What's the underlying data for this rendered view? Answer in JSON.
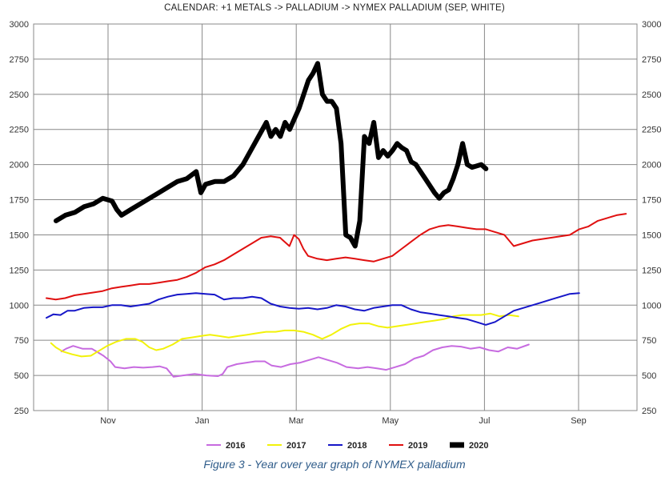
{
  "chart_data": {
    "type": "line",
    "title": "CALENDAR: +1 METALS -> PALLADIUM -> NYMEX PALLADIUM (SEP, WHITE)",
    "xlabel": "",
    "ylabel": "",
    "ylim": [
      250,
      3000
    ],
    "y_ticks": [
      "250",
      "500",
      "750",
      "1000",
      "1250",
      "1500",
      "1750",
      "2000",
      "2250",
      "2500",
      "2750",
      "3000"
    ],
    "x_ticks": [
      "Nov",
      "Jan",
      "Mar",
      "May",
      "Jul",
      "Sep"
    ],
    "grid": true,
    "legend_position": "bottom",
    "series": [
      {
        "name": "2016",
        "color": "#c76be0",
        "width": 2,
        "points": [
          [
            0.03,
            670
          ],
          [
            0.05,
            690
          ],
          [
            0.08,
            710
          ],
          [
            0.12,
            690
          ],
          [
            0.16,
            690
          ],
          [
            0.19,
            660
          ],
          [
            0.21,
            640
          ],
          [
            0.24,
            600
          ],
          [
            0.26,
            560
          ],
          [
            0.3,
            550
          ],
          [
            0.34,
            560
          ],
          [
            0.38,
            555
          ],
          [
            0.42,
            560
          ],
          [
            0.45,
            565
          ],
          [
            0.48,
            550
          ],
          [
            0.51,
            490
          ],
          [
            0.55,
            500
          ],
          [
            0.6,
            510
          ],
          [
            0.65,
            500
          ],
          [
            0.7,
            495
          ],
          [
            0.72,
            510
          ],
          [
            0.74,
            560
          ],
          [
            0.78,
            580
          ],
          [
            0.82,
            590
          ],
          [
            0.86,
            600
          ],
          [
            0.9,
            600
          ],
          [
            0.93,
            570
          ],
          [
            0.97,
            560
          ],
          [
            1.01,
            580
          ],
          [
            1.05,
            590
          ],
          [
            1.09,
            610
          ],
          [
            1.13,
            630
          ],
          [
            1.17,
            610
          ],
          [
            1.21,
            590
          ],
          [
            1.25,
            560
          ],
          [
            1.3,
            550
          ],
          [
            1.34,
            560
          ],
          [
            1.38,
            550
          ],
          [
            1.42,
            540
          ],
          [
            1.46,
            560
          ],
          [
            1.5,
            580
          ],
          [
            1.54,
            620
          ],
          [
            1.58,
            640
          ],
          [
            1.62,
            680
          ],
          [
            1.66,
            700
          ],
          [
            1.7,
            710
          ],
          [
            1.74,
            705
          ],
          [
            1.78,
            690
          ],
          [
            1.82,
            700
          ],
          [
            1.86,
            680
          ],
          [
            1.9,
            670
          ],
          [
            1.94,
            700
          ],
          [
            1.98,
            690
          ],
          [
            2.03,
            720
          ]
        ]
      },
      {
        "name": "2017",
        "color": "#f2f20a",
        "width": 2,
        "points": [
          [
            0.02,
            730
          ],
          [
            0.04,
            700
          ],
          [
            0.07,
            670
          ],
          [
            0.11,
            650
          ],
          [
            0.15,
            635
          ],
          [
            0.19,
            640
          ],
          [
            0.22,
            670
          ],
          [
            0.26,
            710
          ],
          [
            0.3,
            740
          ],
          [
            0.34,
            760
          ],
          [
            0.38,
            760
          ],
          [
            0.41,
            740
          ],
          [
            0.44,
            700
          ],
          [
            0.47,
            680
          ],
          [
            0.5,
            690
          ],
          [
            0.54,
            720
          ],
          [
            0.58,
            760
          ],
          [
            0.62,
            770
          ],
          [
            0.66,
            780
          ],
          [
            0.7,
            790
          ],
          [
            0.74,
            780
          ],
          [
            0.78,
            770
          ],
          [
            0.82,
            780
          ],
          [
            0.86,
            790
          ],
          [
            0.9,
            800
          ],
          [
            0.94,
            810
          ],
          [
            0.98,
            810
          ],
          [
            1.02,
            820
          ],
          [
            1.06,
            820
          ],
          [
            1.1,
            810
          ],
          [
            1.14,
            790
          ],
          [
            1.18,
            760
          ],
          [
            1.22,
            790
          ],
          [
            1.26,
            830
          ],
          [
            1.3,
            860
          ],
          [
            1.34,
            870
          ],
          [
            1.38,
            870
          ],
          [
            1.42,
            850
          ],
          [
            1.46,
            840
          ],
          [
            1.5,
            850
          ],
          [
            1.54,
            860
          ],
          [
            1.58,
            870
          ],
          [
            1.62,
            880
          ],
          [
            1.66,
            890
          ],
          [
            1.7,
            900
          ],
          [
            1.74,
            920
          ],
          [
            1.78,
            930
          ],
          [
            1.82,
            930
          ],
          [
            1.86,
            930
          ],
          [
            1.9,
            940
          ],
          [
            1.94,
            920
          ],
          [
            1.98,
            930
          ],
          [
            2.02,
            920
          ]
        ]
      },
      {
        "name": "2018",
        "color": "#1616c8",
        "width": 2,
        "points": [
          [
            0.0,
            910
          ],
          [
            0.03,
            935
          ],
          [
            0.06,
            930
          ],
          [
            0.09,
            960
          ],
          [
            0.12,
            960
          ],
          [
            0.16,
            980
          ],
          [
            0.2,
            985
          ],
          [
            0.24,
            985
          ],
          [
            0.28,
            1000
          ],
          [
            0.32,
            1000
          ],
          [
            0.36,
            990
          ],
          [
            0.4,
            1000
          ],
          [
            0.44,
            1010
          ],
          [
            0.48,
            1040
          ],
          [
            0.52,
            1060
          ],
          [
            0.56,
            1075
          ],
          [
            0.6,
            1080
          ],
          [
            0.64,
            1085
          ],
          [
            0.68,
            1080
          ],
          [
            0.72,
            1075
          ],
          [
            0.76,
            1040
          ],
          [
            0.8,
            1050
          ],
          [
            0.84,
            1050
          ],
          [
            0.88,
            1060
          ],
          [
            0.92,
            1050
          ],
          [
            0.96,
            1010
          ],
          [
            1.0,
            990
          ],
          [
            1.04,
            980
          ],
          [
            1.08,
            975
          ],
          [
            1.12,
            980
          ],
          [
            1.16,
            970
          ],
          [
            1.2,
            980
          ],
          [
            1.24,
            1000
          ],
          [
            1.28,
            990
          ],
          [
            1.32,
            970
          ],
          [
            1.36,
            960
          ],
          [
            1.4,
            980
          ],
          [
            1.44,
            990
          ],
          [
            1.48,
            1000
          ],
          [
            1.52,
            1000
          ],
          [
            1.56,
            970
          ],
          [
            1.6,
            950
          ],
          [
            1.64,
            940
          ],
          [
            1.68,
            930
          ],
          [
            1.72,
            920
          ],
          [
            1.76,
            910
          ],
          [
            1.8,
            900
          ],
          [
            1.84,
            880
          ],
          [
            1.88,
            860
          ],
          [
            1.92,
            880
          ],
          [
            1.96,
            920
          ],
          [
            2.0,
            960
          ],
          [
            2.04,
            980
          ],
          [
            2.08,
            1000
          ],
          [
            2.12,
            1020
          ],
          [
            2.16,
            1040
          ],
          [
            2.2,
            1060
          ],
          [
            2.24,
            1080
          ],
          [
            2.28,
            1085
          ]
        ]
      },
      {
        "name": "2019",
        "color": "#e01010",
        "width": 2,
        "points": [
          [
            0.0,
            1050
          ],
          [
            0.04,
            1040
          ],
          [
            0.08,
            1050
          ],
          [
            0.12,
            1070
          ],
          [
            0.16,
            1080
          ],
          [
            0.2,
            1090
          ],
          [
            0.24,
            1100
          ],
          [
            0.28,
            1120
          ],
          [
            0.32,
            1130
          ],
          [
            0.36,
            1140
          ],
          [
            0.4,
            1150
          ],
          [
            0.44,
            1150
          ],
          [
            0.48,
            1160
          ],
          [
            0.52,
            1170
          ],
          [
            0.56,
            1180
          ],
          [
            0.6,
            1200
          ],
          [
            0.64,
            1230
          ],
          [
            0.68,
            1270
          ],
          [
            0.72,
            1290
          ],
          [
            0.76,
            1320
          ],
          [
            0.8,
            1360
          ],
          [
            0.84,
            1400
          ],
          [
            0.88,
            1440
          ],
          [
            0.92,
            1480
          ],
          [
            0.96,
            1490
          ],
          [
            1.0,
            1480
          ],
          [
            1.02,
            1450
          ],
          [
            1.04,
            1420
          ],
          [
            1.06,
            1500
          ],
          [
            1.08,
            1470
          ],
          [
            1.1,
            1400
          ],
          [
            1.12,
            1350
          ],
          [
            1.16,
            1330
          ],
          [
            1.2,
            1320
          ],
          [
            1.24,
            1330
          ],
          [
            1.28,
            1340
          ],
          [
            1.32,
            1330
          ],
          [
            1.36,
            1320
          ],
          [
            1.4,
            1310
          ],
          [
            1.44,
            1330
          ],
          [
            1.48,
            1350
          ],
          [
            1.52,
            1400
          ],
          [
            1.56,
            1450
          ],
          [
            1.6,
            1500
          ],
          [
            1.64,
            1540
          ],
          [
            1.68,
            1560
          ],
          [
            1.72,
            1570
          ],
          [
            1.76,
            1560
          ],
          [
            1.8,
            1550
          ],
          [
            1.84,
            1540
          ],
          [
            1.88,
            1540
          ],
          [
            1.92,
            1520
          ],
          [
            1.96,
            1500
          ],
          [
            2.0,
            1420
          ],
          [
            2.04,
            1440
          ],
          [
            2.08,
            1460
          ],
          [
            2.12,
            1470
          ],
          [
            2.16,
            1480
          ],
          [
            2.2,
            1490
          ],
          [
            2.24,
            1500
          ],
          [
            2.28,
            1540
          ],
          [
            2.32,
            1560
          ],
          [
            2.36,
            1600
          ],
          [
            2.4,
            1620
          ],
          [
            2.44,
            1640
          ],
          [
            2.48,
            1650
          ]
        ]
      },
      {
        "name": "2020",
        "color": "#000000",
        "width": 6,
        "points": [
          [
            0.0,
            1600
          ],
          [
            0.04,
            1640
          ],
          [
            0.08,
            1660
          ],
          [
            0.12,
            1700
          ],
          [
            0.16,
            1720
          ],
          [
            0.2,
            1760
          ],
          [
            0.24,
            1740
          ],
          [
            0.26,
            1680
          ],
          [
            0.28,
            1640
          ],
          [
            0.32,
            1680
          ],
          [
            0.36,
            1720
          ],
          [
            0.4,
            1760
          ],
          [
            0.44,
            1800
          ],
          [
            0.48,
            1840
          ],
          [
            0.52,
            1880
          ],
          [
            0.56,
            1900
          ],
          [
            0.6,
            1950
          ],
          [
            0.62,
            1800
          ],
          [
            0.64,
            1860
          ],
          [
            0.68,
            1880
          ],
          [
            0.72,
            1880
          ],
          [
            0.76,
            1920
          ],
          [
            0.8,
            2000
          ],
          [
            0.84,
            2120
          ],
          [
            0.88,
            2240
          ],
          [
            0.9,
            2300
          ],
          [
            0.92,
            2200
          ],
          [
            0.94,
            2250
          ],
          [
            0.96,
            2200
          ],
          [
            0.98,
            2300
          ],
          [
            1.0,
            2250
          ],
          [
            1.04,
            2400
          ],
          [
            1.08,
            2600
          ],
          [
            1.1,
            2650
          ],
          [
            1.12,
            2720
          ],
          [
            1.14,
            2500
          ],
          [
            1.16,
            2450
          ],
          [
            1.18,
            2450
          ],
          [
            1.2,
            2400
          ],
          [
            1.22,
            2150
          ],
          [
            1.24,
            1500
          ],
          [
            1.26,
            1480
          ],
          [
            1.28,
            1420
          ],
          [
            1.3,
            1600
          ],
          [
            1.32,
            2200
          ],
          [
            1.34,
            2150
          ],
          [
            1.36,
            2300
          ],
          [
            1.38,
            2050
          ],
          [
            1.4,
            2100
          ],
          [
            1.42,
            2060
          ],
          [
            1.44,
            2100
          ],
          [
            1.46,
            2150
          ],
          [
            1.48,
            2120
          ],
          [
            1.5,
            2100
          ],
          [
            1.52,
            2020
          ],
          [
            1.54,
            2000
          ],
          [
            1.56,
            1950
          ],
          [
            1.58,
            1900
          ],
          [
            1.6,
            1850
          ],
          [
            1.62,
            1800
          ],
          [
            1.64,
            1760
          ],
          [
            1.66,
            1800
          ],
          [
            1.68,
            1820
          ],
          [
            1.7,
            1900
          ],
          [
            1.72,
            2000
          ],
          [
            1.74,
            2150
          ],
          [
            1.76,
            2000
          ],
          [
            1.78,
            1980
          ],
          [
            1.8,
            1990
          ],
          [
            1.82,
            2000
          ],
          [
            1.84,
            1970
          ]
        ]
      }
    ],
    "caption": "Figure 3 - Year over year graph of NYMEX palladium"
  }
}
